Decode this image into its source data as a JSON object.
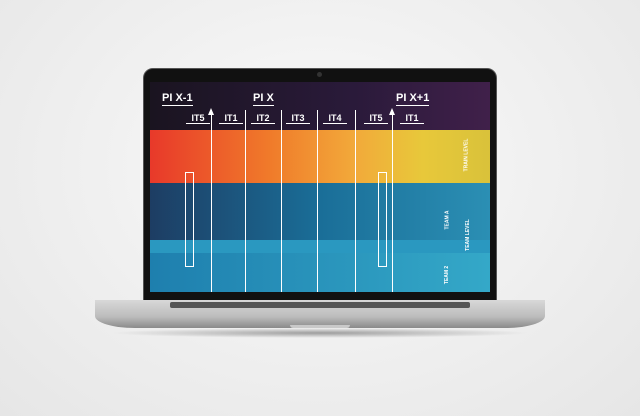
{
  "pi_headers": [
    "PI X-1",
    "PI X",
    "PI X+1"
  ],
  "iterations": [
    "IT5",
    "IT1",
    "IT2",
    "IT3",
    "IT4",
    "IT5",
    "IT1"
  ],
  "row_labels": {
    "train": "TRAIN LEVEL",
    "team_a": "TEAM A",
    "team_level": "TEAM LEVEL",
    "team_2": "TEAM 2"
  },
  "colors": {
    "train_band": "#f07a2a",
    "team_a_band": "#1a6e98",
    "team_2_band": "#2a98c0"
  }
}
